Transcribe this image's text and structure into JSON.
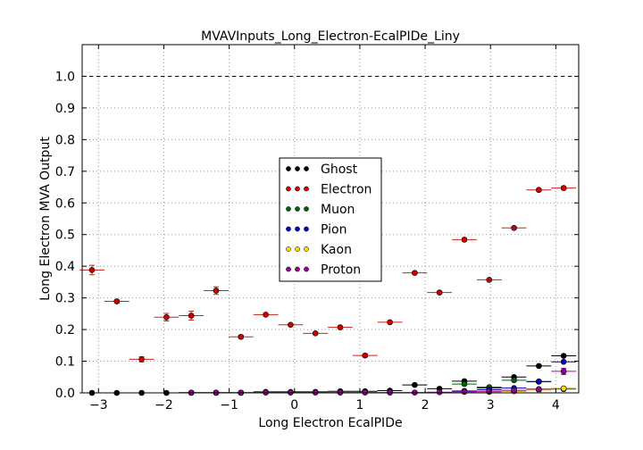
{
  "chart_data": {
    "type": "scatter",
    "title": "MVAVInputs_Long_Electron-EcalPIDe_Liny",
    "xlabel": "Long Electron EcalPIDe",
    "ylabel": "Long Electron MVA Output",
    "xlim": [
      -3.25,
      4.35
    ],
    "ylim": [
      0.0,
      1.1
    ],
    "x_ticks": [
      -3,
      -2,
      -1,
      0,
      1,
      2,
      3,
      4
    ],
    "x_tick_labels": [
      "−3",
      "−2",
      "−1",
      "0",
      "1",
      "2",
      "3",
      "4"
    ],
    "y_ticks": [
      0.0,
      0.1,
      0.2,
      0.3,
      0.4,
      0.5,
      0.6,
      0.7,
      0.8,
      0.9,
      1.0
    ],
    "y_tick_labels": [
      "0.0",
      "0.1",
      "0.2",
      "0.3",
      "0.4",
      "0.5",
      "0.6",
      "0.7",
      "0.8",
      "0.9",
      "1.0"
    ],
    "grid": true,
    "reference_line_y": 1.0,
    "legend_position": "center",
    "bin_halfwidth": 0.19,
    "series": [
      {
        "name": "Ghost",
        "color": "#000000",
        "marker_color": "#000000",
        "x": [
          -3.1,
          -2.72,
          -2.34,
          -1.96,
          -1.58,
          -1.2,
          -0.82,
          -0.44,
          -0.06,
          0.32,
          0.7,
          1.08,
          1.46,
          1.84,
          2.22,
          2.6,
          2.98,
          3.36,
          3.74,
          4.12
        ],
        "y": [
          0.0,
          0.0,
          0.0,
          0.0,
          0.0,
          0.0,
          0.0,
          0.003,
          0.003,
          0.003,
          0.005,
          0.005,
          0.007,
          0.025,
          0.013,
          0.037,
          0.015,
          0.05,
          0.085,
          0.117
        ]
      },
      {
        "name": "Electron",
        "color": "#cc2222",
        "marker_color": "#cc0000",
        "x": [
          -3.1,
          -2.72,
          -2.34,
          -1.96,
          -1.58,
          -1.2,
          -0.82,
          -0.44,
          -0.06,
          0.32,
          0.7,
          1.08,
          1.46,
          1.84,
          2.22,
          2.6,
          2.98,
          3.36,
          3.74,
          4.12
        ],
        "y": [
          0.388,
          0.289,
          0.106,
          0.239,
          0.244,
          0.323,
          0.177,
          0.247,
          0.215,
          0.188,
          0.207,
          0.118,
          0.223,
          0.379,
          0.317,
          0.484,
          0.357,
          0.521,
          0.641,
          0.647
        ],
        "yerr": [
          0.015,
          0.005,
          0.008,
          0.012,
          0.014,
          0.012,
          0.005,
          0.004,
          0.003,
          0.003,
          0.004,
          0.005,
          0.004,
          0.003,
          0.003,
          0.004,
          0.003,
          0.004,
          0.004,
          0.004
        ]
      },
      {
        "name": "Muon",
        "color": "#006400",
        "marker_color": "#006400",
        "x": [
          2.98,
          3.36,
          3.74,
          4.12,
          2.6
        ],
        "y": [
          0.018,
          0.04,
          0.035,
          0.012,
          0.028
        ]
      },
      {
        "name": "Pion",
        "color": "#0000aa",
        "marker_color": "#0000cc",
        "x": [
          2.6,
          2.98,
          3.36,
          3.74,
          4.12
        ],
        "y": [
          0.006,
          0.01,
          0.015,
          0.036,
          0.098
        ]
      },
      {
        "name": "Kaon",
        "color": "#cc9900",
        "marker_color": "#ffd700",
        "x": [
          2.98,
          3.36,
          3.74,
          4.12
        ],
        "y": [
          0.003,
          0.005,
          0.009,
          0.014
        ]
      },
      {
        "name": "Proton",
        "color": "#aa00aa",
        "marker_color": "#990099",
        "x": [
          -1.58,
          -1.2,
          -0.82,
          -0.44,
          -0.06,
          0.32,
          0.7,
          1.08,
          1.46,
          1.84,
          2.22,
          2.6,
          2.98,
          3.36,
          3.74,
          4.12
        ],
        "y": [
          0.001,
          0.001,
          0.001,
          0.001,
          0.001,
          0.001,
          0.001,
          0.001,
          0.001,
          0.001,
          0.002,
          0.003,
          0.005,
          0.008,
          0.012,
          0.068
        ],
        "yerr": [
          0,
          0,
          0,
          0,
          0,
          0,
          0,
          0,
          0,
          0,
          0,
          0,
          0,
          0,
          0,
          0.01
        ]
      }
    ]
  }
}
